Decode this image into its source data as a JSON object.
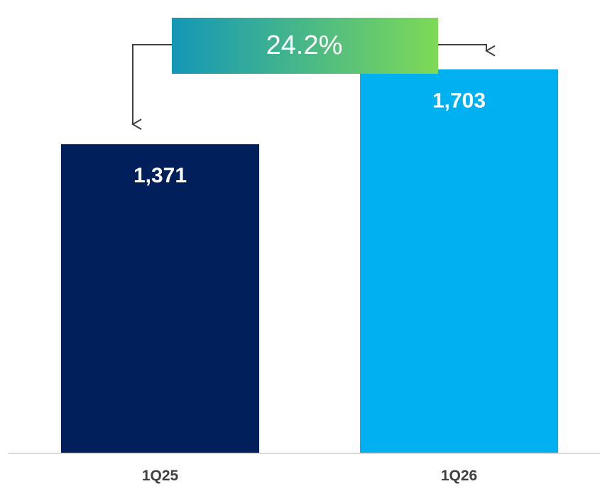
{
  "chart_data": {
    "type": "bar",
    "categories": [
      "1Q25",
      "1Q26"
    ],
    "values": [
      1371,
      1703
    ],
    "data_labels": [
      "1,371",
      "1,703"
    ],
    "colors": [
      "#001f5b",
      "#00b0f0"
    ],
    "ylim": [
      0,
      1900
    ],
    "grid": false,
    "legend": "none",
    "annotation": {
      "text": "24.2%",
      "from": "1Q25",
      "to": "1Q26",
      "gradient": [
        "#1497b7",
        "#7ed957"
      ]
    }
  }
}
